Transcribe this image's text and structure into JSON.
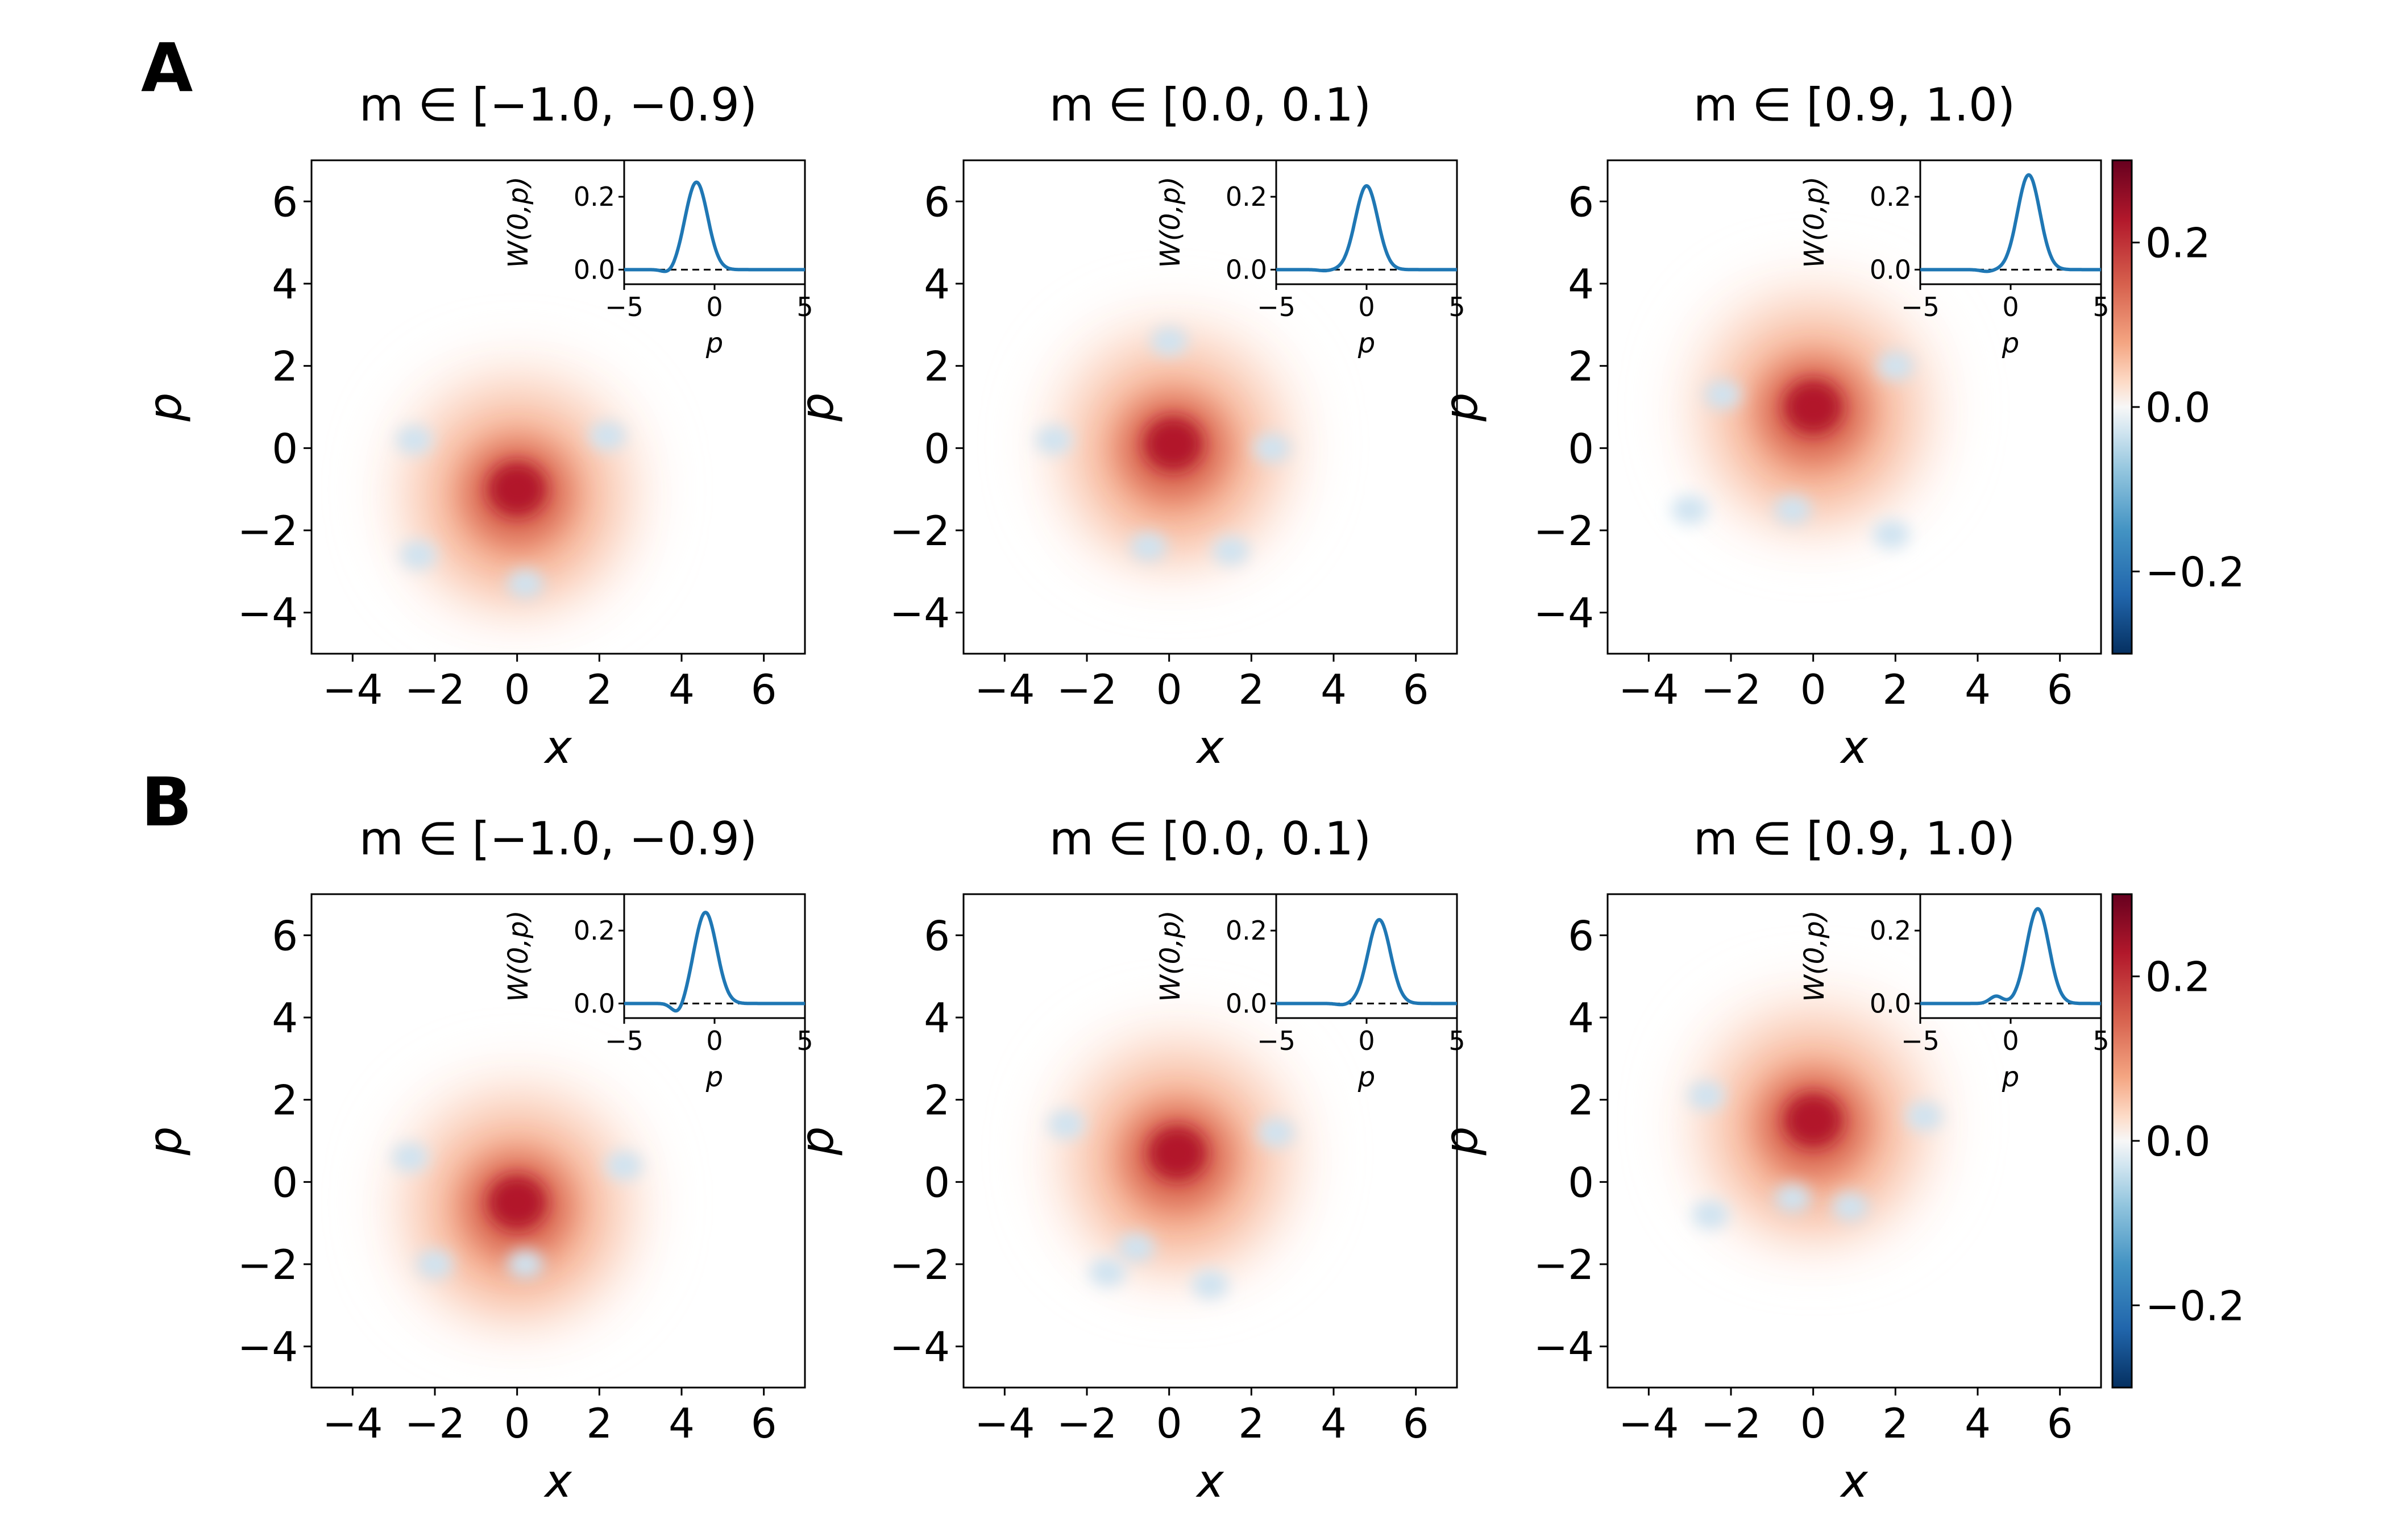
{
  "figure": {
    "row_labels": [
      "A",
      "B"
    ]
  },
  "chart_data": [
    {
      "type": "heatmap",
      "row": "A",
      "title": "m ∈ [−1.0, −0.9)",
      "xlabel": "x",
      "ylabel": "p",
      "xlim": [
        -5,
        7
      ],
      "ylim": [
        -5,
        7
      ],
      "xticks": [
        -4,
        -2,
        0,
        2,
        4,
        6
      ],
      "yticks": [
        -4,
        -2,
        0,
        2,
        4,
        6
      ],
      "peak_center": [
        0,
        -1
      ],
      "peak_value": 0.24,
      "negative_regions": [
        [
          -2.5,
          0.2
        ],
        [
          2.2,
          0.3
        ],
        [
          -2.4,
          -2.6
        ],
        [
          0.2,
          -3.3
        ]
      ],
      "inset": {
        "type": "line",
        "xlabel": "p",
        "ylabel": "W(0,p)",
        "xlim": [
          -5,
          5
        ],
        "ylim": [
          -0.04,
          0.3
        ],
        "xticks": [
          -5,
          0,
          5
        ],
        "yticks": [
          0.0,
          0.2
        ],
        "peak_p": -1.0,
        "peak_value": 0.24,
        "dip": [
          -2.5,
          -0.012
        ]
      }
    },
    {
      "type": "heatmap",
      "row": "A",
      "title": "m ∈ [0.0, 0.1)",
      "xlabel": "x",
      "ylabel": "p",
      "xlim": [
        -5,
        7
      ],
      "ylim": [
        -5,
        7
      ],
      "xticks": [
        -4,
        -2,
        0,
        2,
        4,
        6
      ],
      "yticks": [
        -4,
        -2,
        0,
        2,
        4,
        6
      ],
      "peak_center": [
        0.1,
        0.1
      ],
      "peak_value": 0.23,
      "negative_regions": [
        [
          -2.8,
          0.2
        ],
        [
          2.5,
          0.0
        ],
        [
          -0.5,
          -2.4
        ],
        [
          1.5,
          -2.5
        ],
        [
          0.0,
          2.6
        ]
      ],
      "inset": {
        "type": "line",
        "xlabel": "p",
        "ylabel": "W(0,p)",
        "xlim": [
          -5,
          5
        ],
        "ylim": [
          -0.04,
          0.3
        ],
        "xticks": [
          -5,
          0,
          5
        ],
        "yticks": [
          0.0,
          0.2
        ],
        "peak_p": 0.0,
        "peak_value": 0.23,
        "dip": [
          -2.3,
          -0.003
        ]
      }
    },
    {
      "type": "heatmap",
      "row": "A",
      "title": "m ∈ [0.9, 1.0)",
      "xlabel": "x",
      "ylabel": "p",
      "xlim": [
        -5,
        7
      ],
      "ylim": [
        -5,
        7
      ],
      "xticks": [
        -4,
        -2,
        0,
        2,
        4,
        6
      ],
      "yticks": [
        -4,
        -2,
        0,
        2,
        4,
        6
      ],
      "peak_center": [
        0,
        1
      ],
      "peak_value": 0.26,
      "negative_regions": [
        [
          -2.2,
          1.3
        ],
        [
          -3.0,
          -1.5
        ],
        [
          -0.5,
          -1.5
        ],
        [
          2.0,
          2.0
        ],
        [
          1.9,
          -2.1
        ]
      ],
      "inset": {
        "type": "line",
        "xlabel": "p",
        "ylabel": "W(0,p)",
        "xlim": [
          -5,
          5
        ],
        "ylim": [
          -0.04,
          0.3
        ],
        "xticks": [
          -5,
          0,
          5
        ],
        "yticks": [
          0.0,
          0.2
        ],
        "peak_p": 1.0,
        "peak_value": 0.26,
        "dip": [
          -1.3,
          -0.005
        ]
      }
    },
    {
      "type": "heatmap",
      "row": "B",
      "title": "m ∈ [−1.0, −0.9)",
      "xlabel": "x",
      "ylabel": "p",
      "xlim": [
        -5,
        7
      ],
      "ylim": [
        -5,
        7
      ],
      "xticks": [
        -4,
        -2,
        0,
        2,
        4,
        6
      ],
      "yticks": [
        -4,
        -2,
        0,
        2,
        4,
        6
      ],
      "peak_center": [
        0,
        -0.5
      ],
      "peak_value": 0.25,
      "negative_regions": [
        [
          0.2,
          -2.0
        ],
        [
          -2.6,
          0.6
        ],
        [
          2.6,
          0.4
        ],
        [
          -2.0,
          -2.0
        ]
      ],
      "inset": {
        "type": "line",
        "xlabel": "p",
        "ylabel": "W(0,p)",
        "xlim": [
          -5,
          5
        ],
        "ylim": [
          -0.04,
          0.3
        ],
        "xticks": [
          -5,
          0,
          5
        ],
        "yticks": [
          0.0,
          0.2
        ],
        "peak_p": -0.5,
        "peak_value": 0.25,
        "dip": [
          -2.0,
          -0.03
        ]
      }
    },
    {
      "type": "heatmap",
      "row": "B",
      "title": "m ∈ [0.0, 0.1)",
      "xlabel": "x",
      "ylabel": "p",
      "xlim": [
        -5,
        7
      ],
      "ylim": [
        -5,
        7
      ],
      "xticks": [
        -4,
        -2,
        0,
        2,
        4,
        6
      ],
      "yticks": [
        -4,
        -2,
        0,
        2,
        4,
        6
      ],
      "peak_center": [
        0.2,
        0.7
      ],
      "peak_value": 0.23,
      "negative_regions": [
        [
          -0.8,
          -1.6
        ],
        [
          -1.5,
          -2.2
        ],
        [
          1.0,
          -2.5
        ],
        [
          2.6,
          1.2
        ],
        [
          -2.5,
          1.4
        ]
      ],
      "inset": {
        "type": "line",
        "xlabel": "p",
        "ylabel": "W(0,p)",
        "xlim": [
          -5,
          5
        ],
        "ylim": [
          -0.04,
          0.3
        ],
        "xticks": [
          -5,
          0,
          5
        ],
        "yticks": [
          0.0,
          0.2
        ],
        "peak_p": 0.7,
        "peak_value": 0.23,
        "dip": [
          -1.3,
          -0.004
        ]
      }
    },
    {
      "type": "heatmap",
      "row": "B",
      "title": "m ∈ [0.9, 1.0)",
      "xlabel": "x",
      "ylabel": "p",
      "xlim": [
        -5,
        7
      ],
      "ylim": [
        -5,
        7
      ],
      "xticks": [
        -4,
        -2,
        0,
        2,
        4,
        6
      ],
      "yticks": [
        -4,
        -2,
        0,
        2,
        4,
        6
      ],
      "peak_center": [
        0,
        1.5
      ],
      "peak_value": 0.26,
      "negative_regions": [
        [
          -0.5,
          -0.4
        ],
        [
          -2.5,
          -0.8
        ],
        [
          0.9,
          -0.6
        ],
        [
          2.7,
          1.6
        ],
        [
          -2.6,
          2.1
        ]
      ],
      "inset": {
        "type": "line",
        "xlabel": "p",
        "ylabel": "W(0,p)",
        "xlim": [
          -5,
          5
        ],
        "ylim": [
          -0.04,
          0.3
        ],
        "xticks": [
          -5,
          0,
          5
        ],
        "yticks": [
          0.0,
          0.2
        ],
        "peak_p": 1.5,
        "peak_value": 0.26,
        "dip": [
          -0.8,
          0.02
        ]
      }
    }
  ],
  "colorbar": {
    "colormap": "RdBu_r",
    "range": [
      -0.3,
      0.3
    ],
    "ticks": [
      "0.2",
      "0.0",
      "−0.2"
    ],
    "tick_values": [
      0.2,
      0.0,
      -0.2
    ]
  },
  "colors": {
    "line": "#1f77b4",
    "zero_line": "#000000",
    "positive": "#b2182b",
    "negative": "#2166ac"
  }
}
